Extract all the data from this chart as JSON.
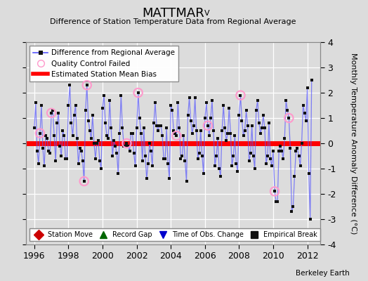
{
  "title": "MATTMAR",
  "title_subscript": "V",
  "subtitle": "Difference of Station Temperature Data from Regional Average",
  "ylabel": "Monthly Temperature Anomaly Difference (°C)",
  "xlim": [
    1995.5,
    2012.75
  ],
  "ylim": [
    -4,
    4
  ],
  "yticks": [
    -4,
    -3,
    -2,
    -1,
    0,
    1,
    2,
    3,
    4
  ],
  "xticks": [
    1996,
    1998,
    2000,
    2002,
    2004,
    2006,
    2008,
    2010,
    2012
  ],
  "bias_value": 0.0,
  "background_color": "#dcdcdc",
  "plot_bg_color": "#dcdcdc",
  "line_color": "#5555ff",
  "line_alpha": 0.7,
  "marker_color": "#111111",
  "bias_color": "#ff0000",
  "qc_edge_color": "#ff99cc",
  "watermark": "Berkeley Earth",
  "seed": 17,
  "data_values": [
    0.6,
    1.6,
    -0.3,
    -0.8,
    0.4,
    1.5,
    -0.2,
    -0.9,
    0.3,
    0.2,
    -0.3,
    -0.4,
    1.2,
    1.3,
    0.3,
    -0.7,
    0.8,
    1.2,
    -0.1,
    -0.5,
    0.5,
    0.3,
    -0.6,
    -0.6,
    1.5,
    2.3,
    0.8,
    0.3,
    1.1,
    1.5,
    0.2,
    -0.8,
    -0.2,
    -0.3,
    -0.7,
    -1.5,
    1.3,
    2.3,
    0.9,
    0.5,
    0.2,
    1.1,
    0.0,
    -0.6,
    0.0,
    0.1,
    -0.7,
    -1.0,
    1.4,
    1.9,
    0.8,
    0.3,
    0.2,
    1.7,
    0.6,
    -0.5,
    0.1,
    -0.1,
    -0.4,
    -1.2,
    0.4,
    1.9,
    0.6,
    -0.1,
    -0.1,
    0.0,
    -0.1,
    -0.3,
    0.4,
    0.4,
    -0.4,
    -0.9,
    0.6,
    2.0,
    1.0,
    0.4,
    -0.7,
    0.6,
    -0.5,
    -1.4,
    -0.8,
    0.0,
    -0.3,
    -0.9,
    0.8,
    1.6,
    0.7,
    0.5,
    0.7,
    0.7,
    0.3,
    -0.6,
    -0.6,
    0.6,
    -0.8,
    -1.4,
    1.5,
    1.3,
    0.5,
    0.4,
    0.3,
    1.6,
    0.6,
    -0.6,
    -0.5,
    0.3,
    -0.7,
    -1.5,
    1.1,
    1.8,
    0.9,
    0.4,
    0.7,
    1.8,
    0.5,
    -0.6,
    -0.4,
    0.5,
    -0.5,
    -1.2,
    1.0,
    1.6,
    0.7,
    0.3,
    1.0,
    1.7,
    0.5,
    -0.9,
    -0.5,
    0.2,
    -1.0,
    -1.3,
    0.5,
    1.5,
    0.6,
    0.1,
    0.4,
    1.4,
    0.4,
    -0.9,
    -0.5,
    0.3,
    -0.8,
    -1.1,
    1.1,
    1.9,
    0.9,
    0.3,
    0.5,
    1.3,
    0.7,
    -0.7,
    -0.4,
    0.7,
    -0.5,
    -1.0,
    1.3,
    1.7,
    0.8,
    0.4,
    0.6,
    1.1,
    0.6,
    -0.8,
    -0.5,
    0.8,
    -0.6,
    -0.9,
    -0.3,
    -1.9,
    -2.3,
    -2.3,
    -0.3,
    -0.1,
    -0.3,
    -0.6,
    0.2,
    1.7,
    1.3,
    1.0,
    -0.2,
    -2.7,
    -2.5,
    -1.3,
    -0.3,
    -0.2,
    -0.5,
    -0.9,
    0.0,
    1.5,
    1.2,
    0.9,
    2.2,
    -1.2,
    -3.0,
    2.5
  ],
  "qc_indices": [
    4,
    12,
    35,
    37,
    65,
    73,
    100,
    122,
    145,
    169,
    179
  ],
  "bottom_legend": {
    "station_move": {
      "color": "#cc0000",
      "marker": "D"
    },
    "record_gap": {
      "color": "#006600",
      "marker": "^"
    },
    "time_obs": {
      "color": "#0000cc",
      "marker": "v"
    },
    "empirical": {
      "color": "#111111",
      "marker": "s"
    }
  }
}
